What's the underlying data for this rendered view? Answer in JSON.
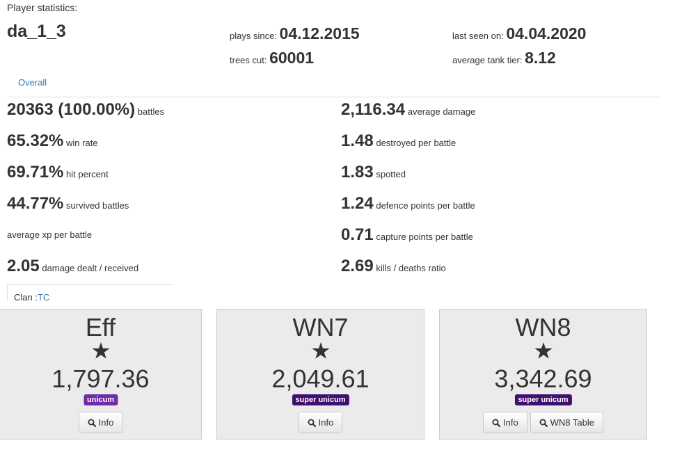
{
  "header": {
    "label": "Player statistics:",
    "player": "da_1_3",
    "info": [
      {
        "label": "plays since:",
        "value": "04.12.2015"
      },
      {
        "label": "trees cut:",
        "value": "60001"
      },
      {
        "label": "last seen on:",
        "value": "04.04.2020"
      },
      {
        "label": "average tank tier:",
        "value": "8.12"
      }
    ]
  },
  "tabs": [
    "Overall"
  ],
  "stats": {
    "left": [
      {
        "value": "20363 (100.00%)",
        "label": "battles"
      },
      {
        "value": "65.32%",
        "label": "win rate"
      },
      {
        "value": "69.71%",
        "label": "hit percent"
      },
      {
        "value": "44.77%",
        "label": "survived battles"
      },
      {
        "label": "average xp per battle"
      },
      {
        "value": "2.05",
        "label": "damage dealt / received"
      }
    ],
    "right": [
      {
        "value": "2,116.34",
        "label": "average damage"
      },
      {
        "value": "1.48",
        "label": "destroyed per battle"
      },
      {
        "value": "1.83",
        "label": "spotted"
      },
      {
        "value": "1.24",
        "label": "defence points per battle"
      },
      {
        "value": "0.71",
        "label": "capture points per battle"
      },
      {
        "value": "2.69",
        "label": "kills / deaths ratio"
      }
    ]
  },
  "clan": {
    "label": "Clan :",
    "tag": "TC"
  },
  "ratings": [
    {
      "name": "Eff",
      "value": "1,797.36",
      "badge": "unicum",
      "badge_color": "#6f2da8",
      "buttons": [
        "Info"
      ]
    },
    {
      "name": "WN7",
      "value": "2,049.61",
      "badge": "super unicum",
      "badge_color": "#401070",
      "buttons": [
        "Info"
      ]
    },
    {
      "name": "WN8",
      "value": "3,342.69",
      "badge": "super unicum",
      "badge_color": "#401070",
      "buttons": [
        "Info",
        "WN8 Table"
      ]
    }
  ]
}
